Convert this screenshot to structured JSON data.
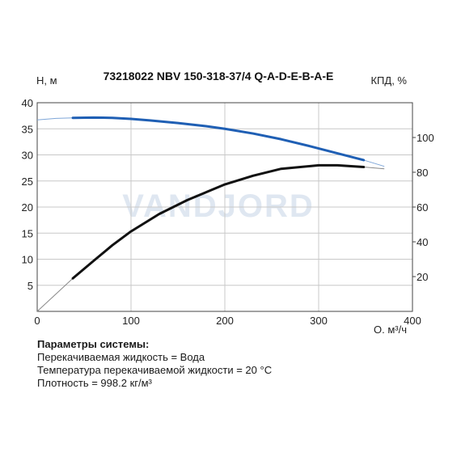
{
  "watermark": "VANDJORD",
  "chart_data": {
    "type": "line",
    "title": "73218022 NBV 150-318-37/4 Q-A-D-E-B-A-E",
    "xlabel": "Q, м³/ч",
    "ylabel": "H, м",
    "ylabel_right": "КПД, %",
    "xlim": [
      0,
      400
    ],
    "ylim": [
      0,
      40
    ],
    "ylim_right": [
      0,
      120
    ],
    "x_ticks": [
      "0",
      "100",
      "200",
      "300",
      "400"
    ],
    "y_ticks": [
      "5",
      "10",
      "15",
      "20",
      "25",
      "30",
      "35",
      "40"
    ],
    "y_right_ticks": [
      "20",
      "40",
      "60",
      "80",
      "100"
    ],
    "grid": true,
    "series": [
      {
        "axis": "left",
        "color": "#1f5fb4",
        "x": [
          0,
          20,
          38,
          60,
          80,
          100,
          120,
          150,
          180,
          200,
          230,
          260,
          290,
          320,
          348,
          370
        ],
        "y": [
          36.7,
          37.0,
          37.1,
          37.15,
          37.1,
          36.9,
          36.6,
          36.1,
          35.5,
          35.0,
          34.1,
          33.0,
          31.7,
          30.3,
          29.0,
          27.8
        ],
        "highlight_range": [
          38,
          348
        ]
      },
      {
        "axis": "right",
        "color": "#111111",
        "x": [
          0,
          20,
          38,
          60,
          80,
          100,
          130,
          160,
          200,
          230,
          260,
          300,
          320,
          348,
          370
        ],
        "y": [
          0,
          10,
          19,
          29,
          38,
          46,
          56,
          64,
          73,
          78,
          82,
          84,
          84,
          83,
          82
        ],
        "highlight_range": [
          38,
          348
        ]
      }
    ]
  },
  "params": {
    "heading": "Параметры системы:",
    "lines": [
      "Перекачиваемая жидкость = Вода",
      "Температура перекачиваемой жидкости = 20 °C",
      "Плотность = 998.2 кг/м³"
    ]
  }
}
